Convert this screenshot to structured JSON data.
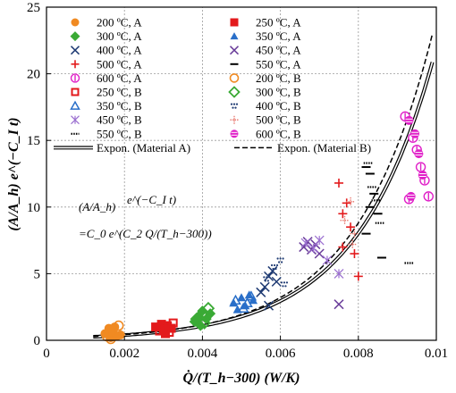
{
  "chart_data": {
    "type": "scatter",
    "xlabel": "Q̇/(T_h−300) (W/K)",
    "ylabel": "(A/A_h) e^(−C_I t)",
    "xlim": [
      0,
      0.01
    ],
    "ylim": [
      0,
      25
    ],
    "x_ticks": [
      "0",
      "0.002",
      "0.004",
      "0.006",
      "0.008",
      "0.01"
    ],
    "y_ticks": [
      "0",
      "5",
      "10",
      "15",
      "20",
      "25"
    ],
    "grid": "major dotted",
    "legend_position": "top",
    "equation": {
      "line1_left": "(A/A_h)",
      "line1_exp": "e^(−C_I t)",
      "line2": "=C_0 e^(C_2 Q/(T_h−300))"
    },
    "series": [
      {
        "name": "200 ºC, A",
        "marker": "circle-filled",
        "color": "#f08a22",
        "points": [
          [
            0.0015,
            0.5
          ],
          [
            0.0016,
            0.9
          ],
          [
            0.00165,
            0.2
          ],
          [
            0.0017,
            0.6
          ],
          [
            0.0018,
            0.3
          ],
          [
            0.00175,
            1.0
          ],
          [
            0.0019,
            0.4
          ]
        ]
      },
      {
        "name": "250 ºC, A",
        "marker": "square-filled",
        "color": "#e31a1c",
        "points": [
          [
            0.0028,
            1.0
          ],
          [
            0.00295,
            1.2
          ],
          [
            0.003,
            0.8
          ],
          [
            0.0031,
            1.1
          ],
          [
            0.0032,
            0.9
          ],
          [
            0.00305,
            0.5
          ]
        ]
      },
      {
        "name": "300 ºC, A",
        "marker": "diamond-filled",
        "color": "#3aaa35",
        "points": [
          [
            0.0038,
            1.4
          ],
          [
            0.0039,
            1.8
          ],
          [
            0.004,
            2.2
          ],
          [
            0.0041,
            1.6
          ],
          [
            0.0042,
            2.0
          ],
          [
            0.00395,
            1.1
          ]
        ]
      },
      {
        "name": "350 ºC, A",
        "marker": "triangle-filled",
        "color": "#2a6fc9",
        "points": [
          [
            0.0048,
            2.8
          ],
          [
            0.005,
            3.2
          ],
          [
            0.0051,
            2.6
          ],
          [
            0.0052,
            3.4
          ],
          [
            0.0053,
            3.0
          ],
          [
            0.0049,
            2.3
          ]
        ]
      },
      {
        "name": "400 ºC, A",
        "marker": "x",
        "color": "#1f3b73",
        "points": [
          [
            0.0056,
            4.0
          ],
          [
            0.0057,
            4.8
          ],
          [
            0.0058,
            5.2
          ],
          [
            0.0059,
            4.4
          ],
          [
            0.0055,
            3.6
          ],
          [
            0.0057,
            2.6
          ]
        ]
      },
      {
        "name": "450 ºC, A",
        "marker": "x",
        "color": "#6a3d9a",
        "points": [
          [
            0.0066,
            7.0
          ],
          [
            0.0067,
            7.4
          ],
          [
            0.0068,
            6.8
          ],
          [
            0.0069,
            7.2
          ],
          [
            0.007,
            6.5
          ],
          [
            0.0075,
            2.7
          ]
        ]
      },
      {
        "name": "500 ºC, A",
        "marker": "plus",
        "color": "#e31a1c",
        "points": [
          [
            0.0075,
            11.8
          ],
          [
            0.0076,
            9.5
          ],
          [
            0.0077,
            10.3
          ],
          [
            0.0078,
            8.5
          ],
          [
            0.0076,
            7.0
          ],
          [
            0.0079,
            6.5
          ],
          [
            0.008,
            4.8
          ]
        ]
      },
      {
        "name": "550 ºC, A",
        "marker": "dash",
        "color": "#000000",
        "points": [
          [
            0.0082,
            13.0
          ],
          [
            0.0083,
            12.5
          ],
          [
            0.0084,
            11.0
          ],
          [
            0.0083,
            10.0
          ],
          [
            0.0085,
            9.5
          ],
          [
            0.0082,
            8.0
          ],
          [
            0.0086,
            6.2
          ]
        ]
      },
      {
        "name": "600 ºC, A",
        "marker": "circle-open-bar",
        "color": "#e020c8",
        "points": [
          [
            0.0092,
            16.8
          ],
          [
            0.0094,
            15.2
          ],
          [
            0.0095,
            14.3
          ],
          [
            0.0096,
            13.0
          ],
          [
            0.0097,
            12.0
          ],
          [
            0.0098,
            10.8
          ],
          [
            0.0093,
            10.6
          ]
        ]
      },
      {
        "name": "200 ºC, B",
        "marker": "circle-open",
        "color": "#f08a22",
        "points": [
          [
            0.00155,
            0.3
          ],
          [
            0.0017,
            0.8
          ],
          [
            0.00185,
            1.1
          ],
          [
            0.00165,
            0.1
          ]
        ]
      },
      {
        "name": "250 ºC, B",
        "marker": "square-open",
        "color": "#e31a1c",
        "points": [
          [
            0.0029,
            0.7
          ],
          [
            0.00305,
            1.0
          ],
          [
            0.00315,
            0.6
          ],
          [
            0.00325,
            1.3
          ]
        ]
      },
      {
        "name": "300 ºC, B",
        "marker": "diamond-open",
        "color": "#3aaa35",
        "points": [
          [
            0.00385,
            1.6
          ],
          [
            0.00405,
            1.3
          ],
          [
            0.00415,
            2.4
          ],
          [
            0.004,
            2.0
          ]
        ]
      },
      {
        "name": "350 ºC, B",
        "marker": "triangle-open",
        "color": "#2a6fc9",
        "points": [
          [
            0.00485,
            3.0
          ],
          [
            0.00505,
            2.4
          ],
          [
            0.00525,
            3.3
          ],
          [
            0.00515,
            2.8
          ]
        ]
      },
      {
        "name": "400 ºC, B",
        "marker": "dots",
        "color": "#1f3b73",
        "points": [
          [
            0.00565,
            4.6
          ],
          [
            0.00585,
            5.5
          ],
          [
            0.006,
            6.0
          ],
          [
            0.0061,
            4.2
          ]
        ]
      },
      {
        "name": "450 ºC, B",
        "marker": "asterisk",
        "color": "#9b6fd0",
        "points": [
          [
            0.00665,
            7.3
          ],
          [
            0.00685,
            6.9
          ],
          [
            0.007,
            7.5
          ],
          [
            0.0072,
            6.0
          ],
          [
            0.0075,
            5.0
          ]
        ]
      },
      {
        "name": "500 ºC, B",
        "marker": "plus-dotted",
        "color": "#e8746a",
        "points": [
          [
            0.00765,
            9.0
          ],
          [
            0.0078,
            10.4
          ],
          [
            0.0079,
            8.0
          ],
          [
            0.00785,
            7.2
          ]
        ]
      },
      {
        "name": "550 ºC, B",
        "marker": "dash-dotted",
        "color": "#000000",
        "points": [
          [
            0.00825,
            13.3
          ],
          [
            0.00835,
            11.5
          ],
          [
            0.00845,
            10.5
          ],
          [
            0.00855,
            8.8
          ],
          [
            0.0093,
            5.8
          ]
        ]
      },
      {
        "name": "600 ºC, B",
        "marker": "circle-striped",
        "color": "#e020c8",
        "points": [
          [
            0.0093,
            16.5
          ],
          [
            0.00945,
            15.5
          ],
          [
            0.00955,
            14.0
          ],
          [
            0.00965,
            12.4
          ],
          [
            0.00935,
            10.8
          ]
        ]
      }
    ],
    "fits": [
      {
        "name": "Expon. (Material A)",
        "style": "double-solid",
        "c0": 0.145,
        "c2": 502
      },
      {
        "name": "Expon. (Material B)",
        "style": "dashed",
        "c0": 0.155,
        "c2": 505
      }
    ]
  }
}
